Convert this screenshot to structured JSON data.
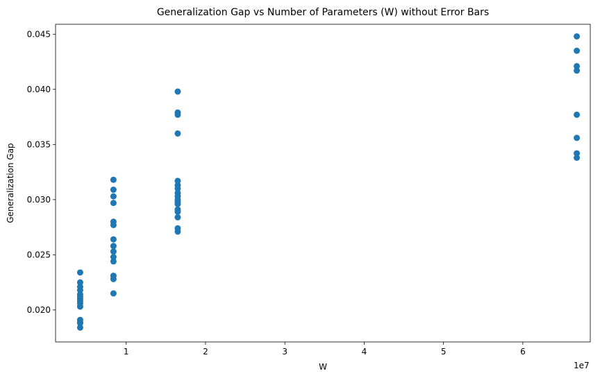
{
  "chart_data": {
    "type": "scatter",
    "title": "Generalization Gap vs Number of Parameters (W) without Error Bars",
    "xlabel": "W",
    "ylabel": "Generalization Gap",
    "x_offset_label": "1e7",
    "xlim": [
      1100000,
      68500000
    ],
    "ylim": [
      0.0171,
      0.0459
    ],
    "xticks": [
      10000000,
      20000000,
      30000000,
      40000000,
      50000000,
      60000000
    ],
    "xtick_labels": [
      "1",
      "2",
      "3",
      "4",
      "5",
      "6"
    ],
    "yticks": [
      0.02,
      0.025,
      0.03,
      0.035,
      0.04,
      0.045
    ],
    "ytick_labels": [
      "0.020",
      "0.025",
      "0.030",
      "0.035",
      "0.040",
      "0.045"
    ],
    "grid": false,
    "marker_color": "#1f77b4",
    "series": [
      {
        "points": [
          [
            4200000,
            0.0234
          ],
          [
            4200000,
            0.0225
          ],
          [
            4200000,
            0.0221
          ],
          [
            4200000,
            0.0218
          ],
          [
            4200000,
            0.0214
          ],
          [
            4200000,
            0.0212
          ],
          [
            4200000,
            0.021
          ],
          [
            4200000,
            0.0208
          ],
          [
            4200000,
            0.0206
          ],
          [
            4200000,
            0.0203
          ],
          [
            4200000,
            0.0191
          ],
          [
            4200000,
            0.0189
          ],
          [
            4200000,
            0.0188
          ],
          [
            4200000,
            0.0184
          ],
          [
            8400000,
            0.0318
          ],
          [
            8400000,
            0.0309
          ],
          [
            8400000,
            0.0303
          ],
          [
            8400000,
            0.0297
          ],
          [
            8400000,
            0.028
          ],
          [
            8400000,
            0.0277
          ],
          [
            8400000,
            0.0264
          ],
          [
            8400000,
            0.0258
          ],
          [
            8400000,
            0.0253
          ],
          [
            8400000,
            0.0248
          ],
          [
            8400000,
            0.0244
          ],
          [
            8400000,
            0.0231
          ],
          [
            8400000,
            0.0228
          ],
          [
            8400000,
            0.0215
          ],
          [
            16500000,
            0.0398
          ],
          [
            16500000,
            0.0379
          ],
          [
            16500000,
            0.0377
          ],
          [
            16500000,
            0.036
          ],
          [
            16500000,
            0.0317
          ],
          [
            16500000,
            0.0313
          ],
          [
            16500000,
            0.031
          ],
          [
            16500000,
            0.0306
          ],
          [
            16500000,
            0.0303
          ],
          [
            16500000,
            0.03
          ],
          [
            16500000,
            0.0298
          ],
          [
            16500000,
            0.0296
          ],
          [
            16500000,
            0.0291
          ],
          [
            16500000,
            0.0289
          ],
          [
            16500000,
            0.0284
          ],
          [
            16500000,
            0.0274
          ],
          [
            16500000,
            0.0271
          ],
          [
            66800000,
            0.0448
          ],
          [
            66800000,
            0.0435
          ],
          [
            66800000,
            0.0421
          ],
          [
            66800000,
            0.0417
          ],
          [
            66800000,
            0.0377
          ],
          [
            66800000,
            0.0356
          ],
          [
            66800000,
            0.0342
          ],
          [
            66800000,
            0.0338
          ]
        ]
      }
    ]
  }
}
